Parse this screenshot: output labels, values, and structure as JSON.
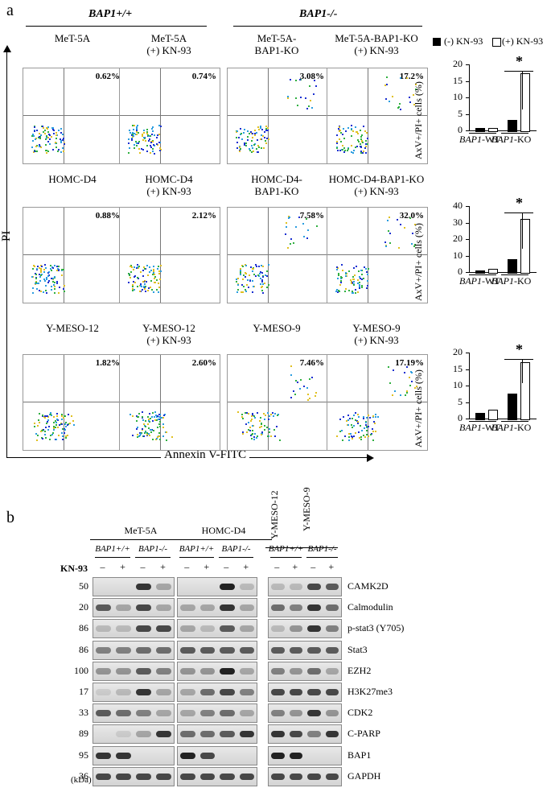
{
  "panel_a": {
    "letter": "a",
    "group_wt": "BAP1+/+",
    "group_ko": "BAP1-/-",
    "y_axis_label": "PI",
    "x_axis_label": "Annexin V-FITC",
    "rows": [
      {
        "titles": [
          "MeT-5A",
          "MeT-5A\n(+) KN-93",
          "MeT-5A-\nBAP1-KO",
          "MeT-5A-BAP1-KO\n(+) KN-93"
        ],
        "percents": [
          "0.62%",
          "0.74%",
          "3.08%",
          "17.2%"
        ]
      },
      {
        "titles": [
          "HOMC-D4",
          "HOMC-D4\n(+) KN-93",
          "HOMC-D4-\nBAP1-KO",
          "HOMC-D4-BAP1-KO\n(+) KN-93"
        ],
        "percents": [
          "0.88%",
          "2.12%",
          "7.58%",
          "32.0%"
        ]
      },
      {
        "titles": [
          "Y-MESO-12",
          "Y-MESO-12\n(+) KN-93",
          "Y-MESO-9",
          "Y-MESO-9\n(+) KN-93"
        ],
        "percents": [
          "1.82%",
          "2.60%",
          "7.46%",
          "17.19%"
        ]
      }
    ],
    "legend": {
      "neg": "(-) KN-93",
      "pos": "(+) KN-93"
    },
    "chart_ylabel": "AxV+/PI+ cells (%)",
    "significance": "*"
  },
  "chart_data": [
    {
      "type": "bar",
      "categories": [
        "BAP1-WT",
        "BAP1-KO"
      ],
      "series": [
        {
          "name": "(-) KN-93",
          "values": [
            0.62,
            3.08
          ]
        },
        {
          "name": "(+) KN-93",
          "values": [
            0.74,
            17.2
          ]
        }
      ],
      "ylabel": "AxV+/PI+ cells (%)",
      "ylim": [
        0,
        20
      ],
      "yticks": [
        0,
        5,
        10,
        15,
        20
      ]
    },
    {
      "type": "bar",
      "categories": [
        "BAP1-WT",
        "BAP1-KO"
      ],
      "series": [
        {
          "name": "(-) KN-93",
          "values": [
            0.88,
            7.58
          ]
        },
        {
          "name": "(+) KN-93",
          "values": [
            2.12,
            32.0
          ]
        }
      ],
      "ylabel": "AxV+/PI+ cells (%)",
      "ylim": [
        0,
        40
      ],
      "yticks": [
        0,
        10,
        20,
        30,
        40
      ]
    },
    {
      "type": "bar",
      "categories": [
        "BAP1-WT",
        "BAP1-KO"
      ],
      "series": [
        {
          "name": "(-) KN-93",
          "values": [
            1.82,
            7.46
          ]
        },
        {
          "name": "(+) KN-93",
          "values": [
            2.6,
            17.19
          ]
        }
      ],
      "ylabel": "AxV+/PI+ cells (%)",
      "ylim": [
        0,
        20
      ],
      "yticks": [
        0,
        5,
        10,
        15,
        20
      ]
    }
  ],
  "panel_b": {
    "letter": "b",
    "cell_lines": [
      "MeT-5A",
      "HOMC-D4"
    ],
    "rotated_lines": [
      "Y-MESO-12",
      "Y-MESO-9"
    ],
    "genotypes": [
      "BAP1+/+",
      "BAP1-/-"
    ],
    "treatment_label": "KN-93",
    "treatment_signs": [
      "–",
      "+",
      "–",
      "+"
    ],
    "kda_label": "(kDa)",
    "proteins": [
      {
        "name": "CAMK2D",
        "mw": "50"
      },
      {
        "name": "Calmodulin",
        "mw": "20"
      },
      {
        "name": "p-stat3 (Y705)",
        "mw": "86"
      },
      {
        "name": "Stat3",
        "mw": "86"
      },
      {
        "name": "EZH2",
        "mw": "100"
      },
      {
        "name": "H3K27me3",
        "mw": "17"
      },
      {
        "name": "CDK2",
        "mw": "33"
      },
      {
        "name": "C-PARP",
        "mw": "89"
      },
      {
        "name": "BAP1",
        "mw": "95"
      },
      {
        "name": "GAPDH",
        "mw": "36"
      }
    ]
  }
}
